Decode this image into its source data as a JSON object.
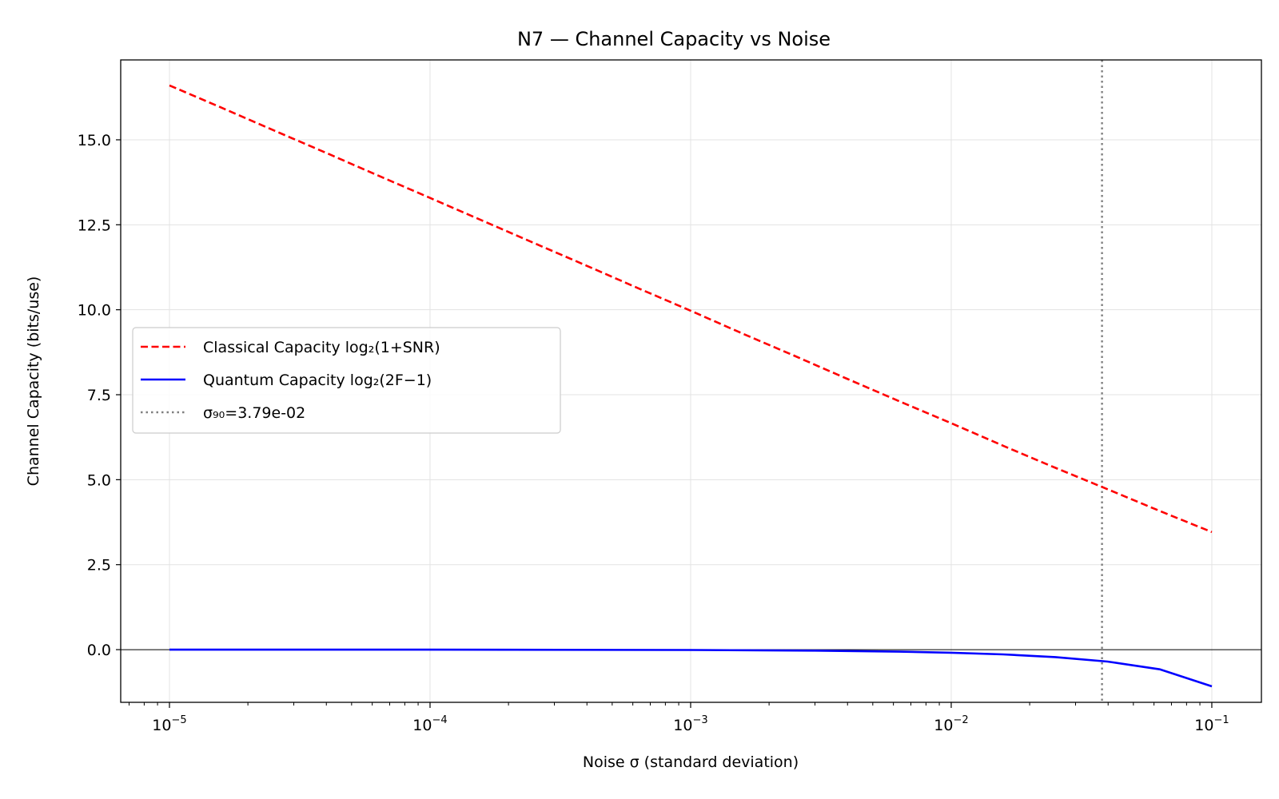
{
  "chart_data": {
    "type": "line",
    "title": "N7 — Channel Capacity vs Noise",
    "xlabel": "Noise σ (standard deviation)",
    "ylabel": "Channel Capacity (bits/use)",
    "xscale": "log",
    "xlim": [
      6.5e-06,
      0.155
    ],
    "ylim": [
      -1.55,
      17.35
    ],
    "grid": true,
    "legend_position": "center-left",
    "x_tick_labels": [
      {
        "base": "10",
        "exp": "−5",
        "value": 1e-05
      },
      {
        "base": "10",
        "exp": "−4",
        "value": 0.0001
      },
      {
        "base": "10",
        "exp": "−3",
        "value": 0.001
      },
      {
        "base": "10",
        "exp": "−2",
        "value": 0.01
      },
      {
        "base": "10",
        "exp": "−1",
        "value": 0.1
      }
    ],
    "y_tick_labels": [
      "0.0",
      "2.5",
      "5.0",
      "7.5",
      "10.0",
      "12.5",
      "15.0"
    ],
    "y_tick_values": [
      0,
      2.5,
      5,
      7.5,
      10,
      12.5,
      15
    ],
    "series": [
      {
        "name": "Classical Capacity log₂(1+SNR)",
        "color": "#ff0000",
        "style": "dashed",
        "x": [
          1e-05,
          1.58e-05,
          2.51e-05,
          3.98e-05,
          6.31e-05,
          0.0001,
          0.000158,
          0.000251,
          0.000398,
          0.000631,
          0.001,
          0.00158,
          0.00251,
          0.00398,
          0.00631,
          0.01,
          0.0158,
          0.0251,
          0.0398,
          0.0631,
          0.1
        ],
        "y": [
          16.6,
          15.95,
          15.28,
          14.62,
          13.95,
          13.29,
          12.63,
          11.96,
          11.3,
          10.63,
          9.97,
          9.3,
          8.64,
          7.97,
          7.31,
          6.66,
          6.0,
          5.35,
          4.72,
          4.08,
          3.46
        ]
      },
      {
        "name": "Quantum Capacity log₂(2F−1)",
        "color": "#0000ff",
        "style": "solid",
        "x": [
          1e-05,
          0.0001,
          0.001,
          0.003,
          0.00631,
          0.01,
          0.0158,
          0.0251,
          0.0398,
          0.0631,
          0.1
        ],
        "y": [
          0.0,
          0.0,
          -0.01,
          -0.03,
          -0.06,
          -0.09,
          -0.14,
          -0.22,
          -0.35,
          -0.58,
          -1.08
        ]
      }
    ],
    "annotations": [
      {
        "type": "vline",
        "label": "σ₉₀=3.79e-02",
        "x": 0.0379,
        "color": "#808080",
        "style": "dotted"
      },
      {
        "type": "hline",
        "y": 0,
        "color": "#000000",
        "style": "solid"
      }
    ]
  }
}
